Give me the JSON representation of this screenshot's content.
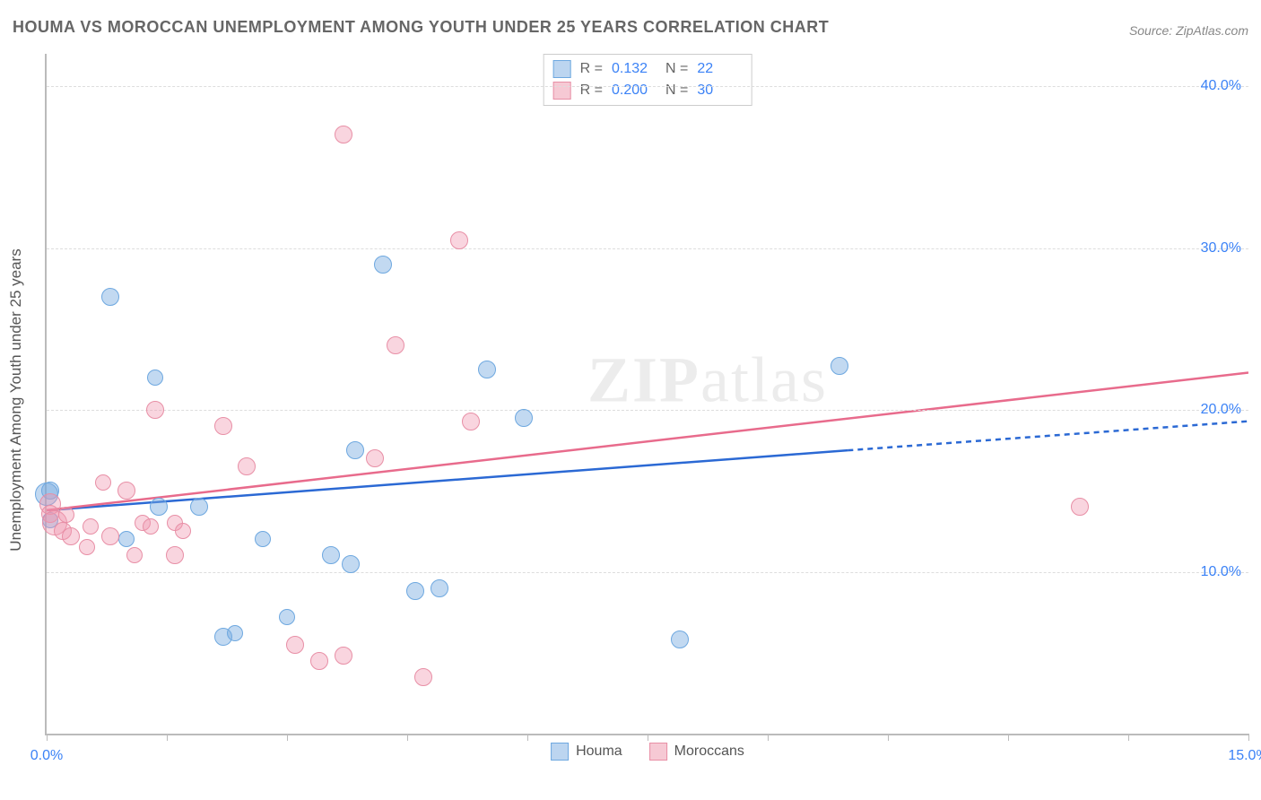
{
  "title": "HOUMA VS MOROCCAN UNEMPLOYMENT AMONG YOUTH UNDER 25 YEARS CORRELATION CHART",
  "source_label": "Source:",
  "source_name": "ZipAtlas.com",
  "y_axis_title": "Unemployment Among Youth under 25 years",
  "watermark": {
    "bold": "ZIP",
    "rest": "atlas"
  },
  "chart": {
    "type": "scatter",
    "xlim": [
      0,
      15
    ],
    "ylim": [
      0,
      42
    ],
    "x_ticks": [
      0,
      1.5,
      3,
      4.5,
      6,
      7.5,
      9,
      10.5,
      12,
      13.5,
      15
    ],
    "x_tick_labels": {
      "0": "0.0%",
      "15": "15.0%"
    },
    "y_gridlines": [
      10,
      20,
      30,
      40
    ],
    "y_tick_labels": [
      "10.0%",
      "20.0%",
      "30.0%",
      "40.0%"
    ],
    "background_color": "#ffffff",
    "grid_color": "#dddddd",
    "axis_color": "#bbbbbb",
    "label_color": "#3b82f6",
    "title_color": "#666666",
    "title_fontsize": 18,
    "label_fontsize": 16,
    "marker_radius": 10,
    "marker_border_width": 1
  },
  "legend_top": [
    {
      "swatch_fill": "#bcd5f0",
      "swatch_border": "#6ea8e0",
      "r_label": "R =",
      "r_value": "0.132",
      "n_label": "N =",
      "n_value": "22"
    },
    {
      "swatch_fill": "#f6c9d4",
      "swatch_border": "#e88fa6",
      "r_label": "R =",
      "r_value": "0.200",
      "n_label": "N =",
      "n_value": "30"
    }
  ],
  "legend_bottom": [
    {
      "swatch_fill": "#bcd5f0",
      "swatch_border": "#6ea8e0",
      "label": "Houma"
    },
    {
      "swatch_fill": "#f6c9d4",
      "swatch_border": "#e88fa6",
      "label": "Moroccans"
    }
  ],
  "series": [
    {
      "name": "Houma",
      "marker_fill": "rgba(120,170,225,0.45)",
      "marker_border": "#6ea8e0",
      "line_color": "#2b69d4",
      "line_width": 2.5,
      "trend": {
        "x1": 0,
        "y1": 13.8,
        "x2_solid": 10.0,
        "y2_solid": 17.5,
        "x2_dash": 15,
        "y2_dash": 19.3
      },
      "points": [
        {
          "x": 0.0,
          "y": 14.8,
          "r": 13
        },
        {
          "x": 0.05,
          "y": 15.0,
          "r": 10
        },
        {
          "x": 0.05,
          "y": 13.2,
          "r": 9
        },
        {
          "x": 0.8,
          "y": 27.0,
          "r": 10
        },
        {
          "x": 1.0,
          "y": 12.0,
          "r": 9
        },
        {
          "x": 1.35,
          "y": 22.0,
          "r": 9
        },
        {
          "x": 1.4,
          "y": 14.0,
          "r": 10
        },
        {
          "x": 1.9,
          "y": 14.0,
          "r": 10
        },
        {
          "x": 2.2,
          "y": 6.0,
          "r": 10
        },
        {
          "x": 2.35,
          "y": 6.2,
          "r": 9
        },
        {
          "x": 2.7,
          "y": 12.0,
          "r": 9
        },
        {
          "x": 3.0,
          "y": 7.2,
          "r": 9
        },
        {
          "x": 3.55,
          "y": 11.0,
          "r": 10
        },
        {
          "x": 3.8,
          "y": 10.5,
          "r": 10
        },
        {
          "x": 3.85,
          "y": 17.5,
          "r": 10
        },
        {
          "x": 4.2,
          "y": 29.0,
          "r": 10
        },
        {
          "x": 4.6,
          "y": 8.8,
          "r": 10
        },
        {
          "x": 4.9,
          "y": 9.0,
          "r": 10
        },
        {
          "x": 5.5,
          "y": 22.5,
          "r": 10
        },
        {
          "x": 5.95,
          "y": 19.5,
          "r": 10
        },
        {
          "x": 7.9,
          "y": 5.8,
          "r": 10
        },
        {
          "x": 9.9,
          "y": 22.7,
          "r": 10
        }
      ]
    },
    {
      "name": "Moroccans",
      "marker_fill": "rgba(240,150,175,0.40)",
      "marker_border": "#e88fa6",
      "line_color": "#e86b8c",
      "line_width": 2.5,
      "trend": {
        "x1": 0,
        "y1": 13.8,
        "x2_solid": 15,
        "y2_solid": 22.3,
        "x2_dash": 15,
        "y2_dash": 22.3
      },
      "points": [
        {
          "x": 0.05,
          "y": 14.2,
          "r": 12
        },
        {
          "x": 0.05,
          "y": 13.6,
          "r": 10
        },
        {
          "x": 0.1,
          "y": 13.0,
          "r": 14
        },
        {
          "x": 0.2,
          "y": 12.5,
          "r": 10
        },
        {
          "x": 0.25,
          "y": 13.5,
          "r": 9
        },
        {
          "x": 0.3,
          "y": 12.2,
          "r": 10
        },
        {
          "x": 0.5,
          "y": 11.5,
          "r": 9
        },
        {
          "x": 0.55,
          "y": 12.8,
          "r": 9
        },
        {
          "x": 0.7,
          "y": 15.5,
          "r": 9
        },
        {
          "x": 0.8,
          "y": 12.2,
          "r": 10
        },
        {
          "x": 1.0,
          "y": 15.0,
          "r": 10
        },
        {
          "x": 1.1,
          "y": 11.0,
          "r": 9
        },
        {
          "x": 1.2,
          "y": 13.0,
          "r": 9
        },
        {
          "x": 1.3,
          "y": 12.8,
          "r": 9
        },
        {
          "x": 1.35,
          "y": 20.0,
          "r": 10
        },
        {
          "x": 1.6,
          "y": 11.0,
          "r": 10
        },
        {
          "x": 1.6,
          "y": 13.0,
          "r": 9
        },
        {
          "x": 1.7,
          "y": 12.5,
          "r": 9
        },
        {
          "x": 2.2,
          "y": 19.0,
          "r": 10
        },
        {
          "x": 2.5,
          "y": 16.5,
          "r": 10
        },
        {
          "x": 3.1,
          "y": 5.5,
          "r": 10
        },
        {
          "x": 3.4,
          "y": 4.5,
          "r": 10
        },
        {
          "x": 3.7,
          "y": 4.8,
          "r": 10
        },
        {
          "x": 3.7,
          "y": 37.0,
          "r": 10
        },
        {
          "x": 4.1,
          "y": 17.0,
          "r": 10
        },
        {
          "x": 4.35,
          "y": 24.0,
          "r": 10
        },
        {
          "x": 4.7,
          "y": 3.5,
          "r": 10
        },
        {
          "x": 5.15,
          "y": 30.5,
          "r": 10
        },
        {
          "x": 5.3,
          "y": 19.3,
          "r": 10
        },
        {
          "x": 12.9,
          "y": 14.0,
          "r": 10
        }
      ]
    }
  ]
}
